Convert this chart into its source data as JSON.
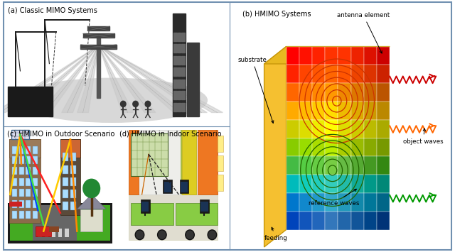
{
  "figure_size": [
    6.4,
    3.55
  ],
  "dpi": 100,
  "bg_color": "#ffffff",
  "border_color": "#7090b0",
  "panel_titles": {
    "a": "(a) Classic MIMO Systems",
    "b": "(b) HMIMO Systems",
    "c": "(c) HMIMO in Outdoor Scenario",
    "d": "(d) HMIMO in Indoor Scenario"
  },
  "panel_title_fontsize": 7.0,
  "wave_colors": {
    "red": "#cc0000",
    "orange": "#ff6600",
    "green": "#009900"
  },
  "substrate_color": "#f5c842",
  "bg_color_a": "#f2f2f2"
}
